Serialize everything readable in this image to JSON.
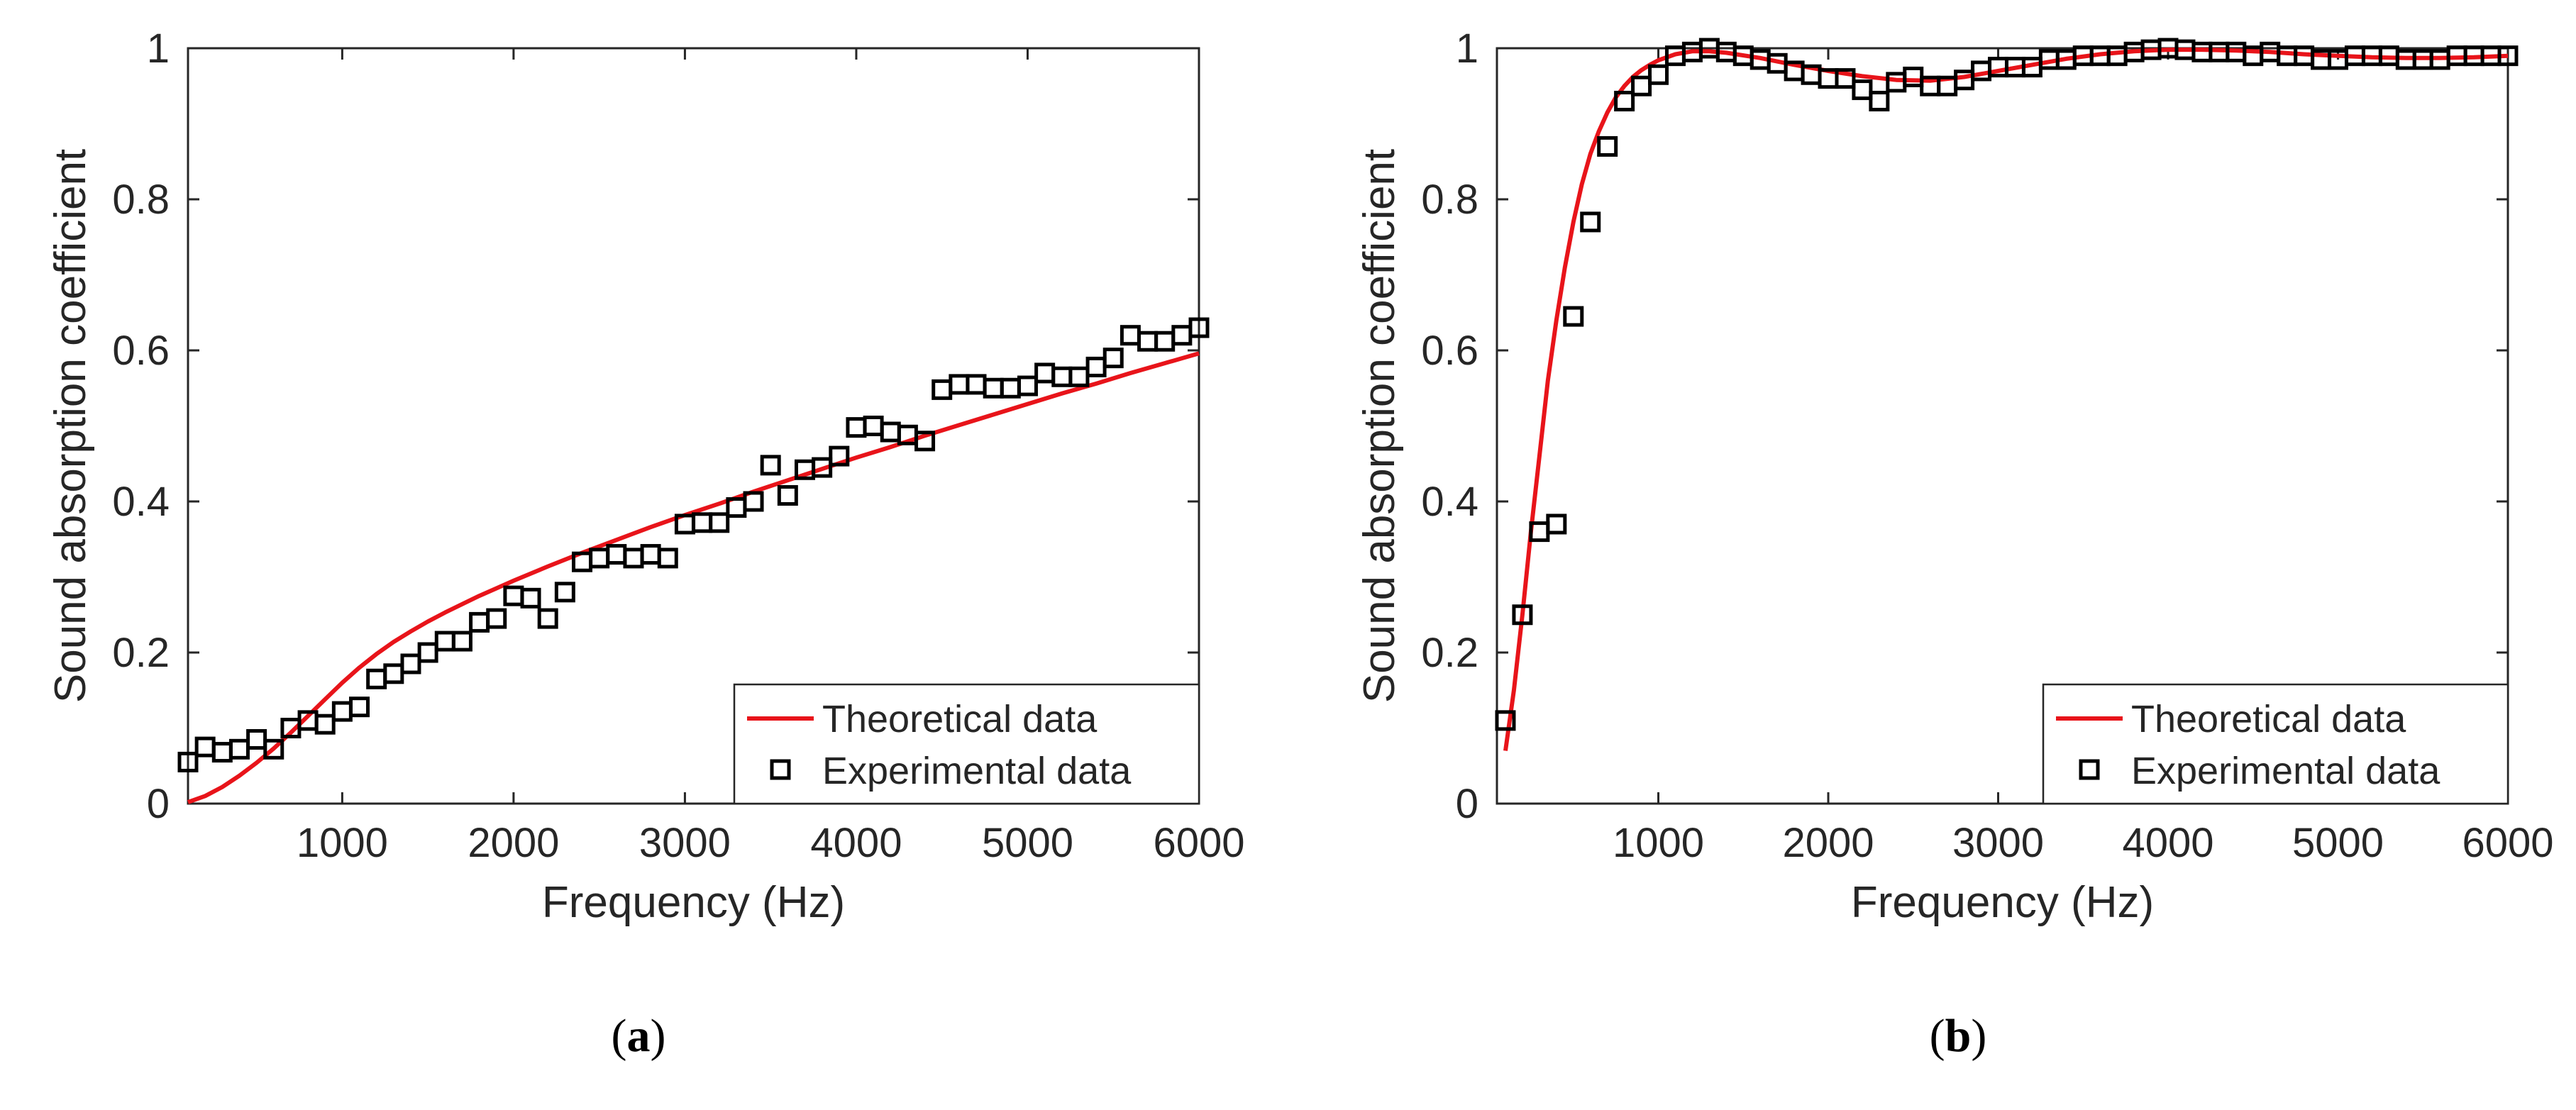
{
  "chart_data": [
    {
      "id": "a",
      "type": "line+scatter",
      "panel_label_open": "(",
      "panel_label_letter": "a",
      "panel_label_close": ")",
      "xlabel": "Frequency (Hz)",
      "ylabel": "Sound absorption coefficient",
      "xlim": [
        100,
        6000
      ],
      "ylim": [
        0,
        1
      ],
      "xticks": [
        1000,
        2000,
        3000,
        4000,
        5000,
        6000
      ],
      "yticks": [
        0,
        0.2,
        0.4,
        0.6,
        0.8,
        1
      ],
      "xtick_labels": [
        "1000",
        "2000",
        "3000",
        "4000",
        "5000",
        "6000"
      ],
      "ytick_labels": [
        "0",
        "0.2",
        "0.4",
        "0.6",
        "0.8",
        "1"
      ],
      "legend_position": "bottom-right",
      "series": [
        {
          "name": "Theoretical data",
          "kind": "line",
          "color": "#e8141a",
          "x": [
            100,
            200,
            300,
            400,
            500,
            600,
            700,
            800,
            900,
            1000,
            1100,
            1200,
            1300,
            1400,
            1500,
            1600,
            1700,
            1800,
            1900,
            2000,
            2200,
            2400,
            2600,
            2800,
            3000,
            3200,
            3400,
            3600,
            3800,
            4000,
            4200,
            4400,
            4600,
            4800,
            5000,
            5200,
            5400,
            5600,
            5800,
            6000
          ],
          "values": [
            0.002,
            0.01,
            0.022,
            0.037,
            0.054,
            0.073,
            0.094,
            0.116,
            0.138,
            0.16,
            0.18,
            0.198,
            0.214,
            0.228,
            0.241,
            0.253,
            0.264,
            0.275,
            0.285,
            0.295,
            0.314,
            0.332,
            0.349,
            0.366,
            0.382,
            0.397,
            0.413,
            0.428,
            0.443,
            0.458,
            0.472,
            0.487,
            0.501,
            0.515,
            0.529,
            0.543,
            0.556,
            0.57,
            0.583,
            0.596
          ]
        },
        {
          "name": "Experimental data",
          "kind": "scatter",
          "marker": "square",
          "color": "#000000",
          "x": [
            100,
            200,
            300,
            400,
            500,
            600,
            700,
            800,
            900,
            1000,
            1100,
            1200,
            1300,
            1400,
            1500,
            1600,
            1700,
            1800,
            1900,
            2000,
            2100,
            2200,
            2300,
            2400,
            2500,
            2600,
            2700,
            2800,
            2900,
            3000,
            3100,
            3200,
            3300,
            3400,
            3500,
            3600,
            3700,
            3800,
            3900,
            4000,
            4100,
            4200,
            4300,
            4400,
            4500,
            4600,
            4700,
            4800,
            4900,
            5000,
            5100,
            5200,
            5300,
            5400,
            5500,
            5600,
            5700,
            5800,
            5900,
            6000
          ],
          "values": [
            0.055,
            0.075,
            0.068,
            0.072,
            0.085,
            0.072,
            0.1,
            0.11,
            0.105,
            0.122,
            0.128,
            0.165,
            0.172,
            0.185,
            0.2,
            0.215,
            0.215,
            0.24,
            0.245,
            0.275,
            0.272,
            0.245,
            0.28,
            0.32,
            0.325,
            0.33,
            0.325,
            0.33,
            0.325,
            0.37,
            0.372,
            0.372,
            0.392,
            0.4,
            0.448,
            0.408,
            0.442,
            0.445,
            0.46,
            0.498,
            0.5,
            0.492,
            0.488,
            0.48,
            0.548,
            0.555,
            0.555,
            0.55,
            0.55,
            0.553,
            0.57,
            0.565,
            0.565,
            0.578,
            0.59,
            0.62,
            0.612,
            0.612,
            0.62,
            0.63
          ]
        }
      ]
    },
    {
      "id": "b",
      "type": "line+scatter",
      "panel_label_open": "(",
      "panel_label_letter": "b",
      "panel_label_close": ")",
      "xlabel": "Frequency (Hz)",
      "ylabel": "Sound absorption coefficient",
      "xlim": [
        50,
        6000
      ],
      "ylim": [
        0,
        1
      ],
      "xticks": [
        1000,
        2000,
        3000,
        4000,
        5000,
        6000
      ],
      "yticks": [
        0,
        0.2,
        0.4,
        0.6,
        0.8,
        1
      ],
      "xtick_labels": [
        "1000",
        "2000",
        "3000",
        "4000",
        "5000",
        "6000"
      ],
      "ytick_labels": [
        "0",
        "0.2",
        "0.4",
        "0.6",
        "0.8",
        "1"
      ],
      "legend_position": "bottom-right",
      "series": [
        {
          "name": "Theoretical data",
          "kind": "line",
          "color": "#e8141a",
          "x": [
            100,
            150,
            200,
            250,
            300,
            350,
            400,
            450,
            500,
            550,
            600,
            650,
            700,
            750,
            800,
            850,
            900,
            950,
            1000,
            1100,
            1200,
            1300,
            1400,
            1600,
            1800,
            2000,
            2200,
            2400,
            2600,
            2800,
            3000,
            3200,
            3400,
            3600,
            3800,
            4000,
            4200,
            4400,
            4600,
            4800,
            5000,
            5200,
            5400,
            5600,
            5800,
            6000
          ],
          "values": [
            0.07,
            0.15,
            0.25,
            0.36,
            0.46,
            0.56,
            0.64,
            0.71,
            0.77,
            0.82,
            0.86,
            0.89,
            0.915,
            0.935,
            0.95,
            0.962,
            0.971,
            0.978,
            0.984,
            0.992,
            0.996,
            0.996,
            0.994,
            0.987,
            0.978,
            0.97,
            0.963,
            0.958,
            0.957,
            0.962,
            0.97,
            0.978,
            0.986,
            0.992,
            0.996,
            0.998,
            0.998,
            0.997,
            0.995,
            0.992,
            0.99,
            0.988,
            0.987,
            0.987,
            0.988,
            0.99
          ]
        },
        {
          "name": "Experimental data",
          "kind": "scatter",
          "marker": "square",
          "color": "#000000",
          "x": [
            100,
            200,
            300,
            400,
            500,
            600,
            700,
            800,
            900,
            1000,
            1100,
            1200,
            1300,
            1400,
            1500,
            1600,
            1700,
            1800,
            1900,
            2000,
            2100,
            2200,
            2300,
            2400,
            2500,
            2600,
            2700,
            2800,
            2900,
            3000,
            3100,
            3200,
            3300,
            3400,
            3500,
            3600,
            3700,
            3800,
            3900,
            4000,
            4100,
            4200,
            4300,
            4400,
            4500,
            4600,
            4700,
            4800,
            4900,
            5000,
            5100,
            5200,
            5300,
            5400,
            5500,
            5600,
            5700,
            5800,
            5900,
            6000
          ],
          "values": [
            0.11,
            0.25,
            0.36,
            0.37,
            0.645,
            0.77,
            0.87,
            0.93,
            0.95,
            0.965,
            0.99,
            0.995,
            1.0,
            0.995,
            0.99,
            0.985,
            0.98,
            0.97,
            0.965,
            0.96,
            0.96,
            0.945,
            0.93,
            0.955,
            0.962,
            0.95,
            0.95,
            0.958,
            0.97,
            0.975,
            0.975,
            0.975,
            0.985,
            0.985,
            0.99,
            0.99,
            0.99,
            0.995,
            0.998,
            1.0,
            0.998,
            0.995,
            0.995,
            0.995,
            0.99,
            0.995,
            0.99,
            0.99,
            0.985,
            0.985,
            0.99,
            0.99,
            0.99,
            0.985,
            0.985,
            0.985,
            0.99,
            0.99,
            0.99,
            0.99
          ]
        }
      ]
    }
  ]
}
